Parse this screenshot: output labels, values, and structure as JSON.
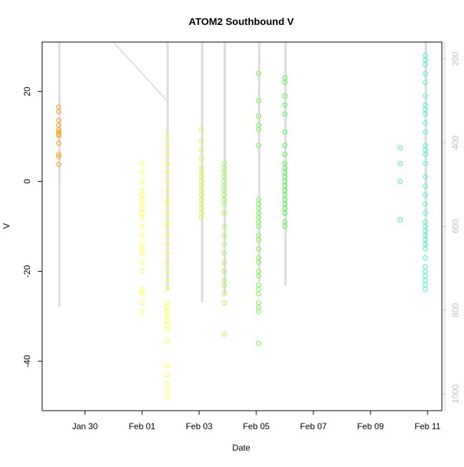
{
  "chart_data": {
    "type": "scatter",
    "title": "ATOM2 Southbound V",
    "xlabel": "Date",
    "ylabel": "V",
    "x_ticks": [
      "Jan 30",
      "Feb 01",
      "Feb 03",
      "Feb 05",
      "Feb 07",
      "Feb 09",
      "Feb 11"
    ],
    "y_ticks": [
      "-40",
      "-20",
      "0",
      "20"
    ],
    "y2_ticks": [
      "200",
      "400",
      "600",
      "800",
      "1000"
    ],
    "x_range": [
      "2015-01-28T12:00",
      "2015-02-11T12:00"
    ],
    "ylim": [
      -51,
      31
    ],
    "y2lim": [
      1040,
      160
    ],
    "grid": false,
    "legend": "none",
    "series": [
      {
        "color": "#ff9900",
        "points": [
          [
            "2015-01-29T02:00",
            16.5
          ],
          [
            "2015-01-29T02:00",
            15.5
          ],
          [
            "2015-01-29T02:00",
            13.5
          ],
          [
            "2015-01-29T02:00",
            12.5
          ],
          [
            "2015-01-29T02:00",
            11.5
          ],
          [
            "2015-01-29T02:00",
            11
          ],
          [
            "2015-01-29T02:00",
            10.5
          ],
          [
            "2015-01-29T02:00",
            10.2
          ],
          [
            "2015-01-29T02:00",
            8.5
          ],
          [
            "2015-01-29T02:00",
            6
          ],
          [
            "2015-01-29T02:00",
            5.5
          ],
          [
            "2015-01-29T02:00",
            3.8
          ]
        ]
      },
      {
        "color": "#ffff33",
        "points": [
          [
            "2015-02-01T00:00",
            4
          ],
          [
            "2015-02-01T00:00",
            2
          ],
          [
            "2015-02-01T00:00",
            0
          ],
          [
            "2015-02-01T00:00",
            -2
          ],
          [
            "2015-02-01T00:00",
            -3
          ],
          [
            "2015-02-01T00:00",
            -4
          ],
          [
            "2015-02-01T00:00",
            -5
          ],
          [
            "2015-02-01T00:00",
            -6
          ],
          [
            "2015-02-01T00:00",
            -7
          ],
          [
            "2015-02-01T00:00",
            -8
          ],
          [
            "2015-02-01T00:00",
            -10
          ],
          [
            "2015-02-01T00:00",
            -12
          ],
          [
            "2015-02-01T00:00",
            -14
          ],
          [
            "2015-02-01T00:00",
            -15
          ],
          [
            "2015-02-01T00:00",
            -16
          ],
          [
            "2015-02-01T00:00",
            -18
          ],
          [
            "2015-02-01T00:00",
            -20
          ],
          [
            "2015-02-01T00:00",
            -24
          ],
          [
            "2015-02-01T00:00",
            -25
          ],
          [
            "2015-02-01T00:00",
            -27
          ],
          [
            "2015-02-01T00:00",
            -29
          ],
          [
            "2015-02-01T21:00",
            10
          ],
          [
            "2015-02-01T21:00",
            8
          ],
          [
            "2015-02-01T21:00",
            6
          ],
          [
            "2015-02-01T21:00",
            4
          ],
          [
            "2015-02-01T21:00",
            2
          ],
          [
            "2015-02-01T21:00",
            0
          ],
          [
            "2015-02-01T21:00",
            -2
          ],
          [
            "2015-02-01T21:00",
            -4
          ],
          [
            "2015-02-01T21:00",
            -5
          ],
          [
            "2015-02-01T21:00",
            -7
          ],
          [
            "2015-02-01T21:00",
            -9
          ],
          [
            "2015-02-01T21:00",
            -10
          ],
          [
            "2015-02-01T21:00",
            -12
          ],
          [
            "2015-02-01T21:00",
            -14
          ],
          [
            "2015-02-01T21:00",
            -16
          ],
          [
            "2015-02-01T21:00",
            -18
          ],
          [
            "2015-02-01T21:00",
            -20
          ],
          [
            "2015-02-01T21:00",
            -22
          ],
          [
            "2015-02-01T21:00",
            -24
          ],
          [
            "2015-02-01T21:00",
            -27
          ],
          [
            "2015-02-01T21:00",
            -28
          ],
          [
            "2015-02-01T21:00",
            -29
          ],
          [
            "2015-02-01T21:00",
            -30
          ],
          [
            "2015-02-01T21:00",
            -31
          ],
          [
            "2015-02-01T21:00",
            -32
          ],
          [
            "2015-02-01T21:00",
            -33
          ],
          [
            "2015-02-01T21:00",
            -35.5
          ],
          [
            "2015-02-01T21:00",
            -41
          ],
          [
            "2015-02-01T21:00",
            -43
          ],
          [
            "2015-02-01T21:00",
            -45
          ],
          [
            "2015-02-01T21:00",
            -46.5
          ],
          [
            "2015-02-01T21:00",
            -48
          ]
        ]
      },
      {
        "color": "#ccff33",
        "points": [
          [
            "2015-02-03T02:00",
            11.5
          ],
          [
            "2015-02-03T02:00",
            9
          ],
          [
            "2015-02-03T02:00",
            7
          ],
          [
            "2015-02-03T02:00",
            5
          ],
          [
            "2015-02-03T02:00",
            3
          ],
          [
            "2015-02-03T02:00",
            2
          ],
          [
            "2015-02-03T02:00",
            1
          ],
          [
            "2015-02-03T02:00",
            0
          ],
          [
            "2015-02-03T02:00",
            -1
          ],
          [
            "2015-02-03T02:00",
            -2
          ],
          [
            "2015-02-03T02:00",
            -3
          ],
          [
            "2015-02-03T02:00",
            -4
          ],
          [
            "2015-02-03T02:00",
            -5
          ],
          [
            "2015-02-03T02:00",
            -6
          ],
          [
            "2015-02-03T02:00",
            -7
          ],
          [
            "2015-02-03T02:00",
            -8
          ]
        ]
      },
      {
        "color": "#99ff33",
        "points": [
          [
            "2015-02-03T21:00",
            4
          ],
          [
            "2015-02-03T21:00",
            3
          ],
          [
            "2015-02-03T21:00",
            2
          ],
          [
            "2015-02-03T21:00",
            1
          ],
          [
            "2015-02-03T21:00",
            0
          ],
          [
            "2015-02-03T21:00",
            -1
          ],
          [
            "2015-02-03T21:00",
            -2
          ],
          [
            "2015-02-03T21:00",
            -3
          ],
          [
            "2015-02-03T21:00",
            -4
          ],
          [
            "2015-02-03T21:00",
            -5
          ],
          [
            "2015-02-03T21:00",
            -7
          ],
          [
            "2015-02-03T21:00",
            -10
          ],
          [
            "2015-02-03T21:00",
            -12
          ],
          [
            "2015-02-03T21:00",
            -14
          ],
          [
            "2015-02-03T21:00",
            -16
          ],
          [
            "2015-02-03T21:00",
            -18
          ],
          [
            "2015-02-03T21:00",
            -20
          ],
          [
            "2015-02-03T21:00",
            -22
          ],
          [
            "2015-02-03T21:00",
            -23
          ],
          [
            "2015-02-03T21:00",
            -25
          ],
          [
            "2015-02-03T21:00",
            -27
          ],
          [
            "2015-02-03T21:00",
            -34
          ]
        ]
      },
      {
        "color": "#66ff33",
        "points": [
          [
            "2015-02-05T02:00",
            24
          ],
          [
            "2015-02-05T02:00",
            18
          ],
          [
            "2015-02-05T02:00",
            14.5
          ],
          [
            "2015-02-05T02:00",
            12.5
          ],
          [
            "2015-02-05T02:00",
            11.5
          ],
          [
            "2015-02-05T02:00",
            8
          ],
          [
            "2015-02-05T02:00",
            -4
          ],
          [
            "2015-02-05T02:00",
            -5
          ],
          [
            "2015-02-05T02:00",
            -6
          ],
          [
            "2015-02-05T02:00",
            -7
          ],
          [
            "2015-02-05T02:00",
            -8
          ],
          [
            "2015-02-05T02:00",
            -9
          ],
          [
            "2015-02-05T02:00",
            -10
          ],
          [
            "2015-02-05T02:00",
            -12
          ],
          [
            "2015-02-05T02:00",
            -13
          ],
          [
            "2015-02-05T02:00",
            -15
          ],
          [
            "2015-02-05T02:00",
            -17
          ],
          [
            "2015-02-05T02:00",
            -18
          ],
          [
            "2015-02-05T02:00",
            -20
          ],
          [
            "2015-02-05T02:00",
            -21
          ],
          [
            "2015-02-05T02:00",
            -23
          ],
          [
            "2015-02-05T02:00",
            -24
          ],
          [
            "2015-02-05T02:00",
            -25
          ],
          [
            "2015-02-05T02:00",
            -27
          ],
          [
            "2015-02-05T02:00",
            -28
          ],
          [
            "2015-02-05T02:00",
            -29
          ],
          [
            "2015-02-05T02:00",
            -36
          ]
        ]
      },
      {
        "color": "#33ff33",
        "points": [
          [
            "2015-02-06T00:00",
            23
          ],
          [
            "2015-02-06T00:00",
            22
          ],
          [
            "2015-02-06T00:00",
            19
          ],
          [
            "2015-02-06T00:00",
            17
          ],
          [
            "2015-02-06T00:00",
            15
          ],
          [
            "2015-02-06T00:00",
            11
          ],
          [
            "2015-02-06T00:00",
            8
          ],
          [
            "2015-02-06T00:00",
            6
          ],
          [
            "2015-02-06T00:00",
            4
          ],
          [
            "2015-02-06T00:00",
            3
          ],
          [
            "2015-02-06T00:00",
            2
          ],
          [
            "2015-02-06T00:00",
            1
          ],
          [
            "2015-02-06T00:00",
            0
          ],
          [
            "2015-02-06T00:00",
            -1
          ],
          [
            "2015-02-06T00:00",
            -2
          ],
          [
            "2015-02-06T00:00",
            -3
          ],
          [
            "2015-02-06T00:00",
            -4
          ],
          [
            "2015-02-06T00:00",
            -5
          ],
          [
            "2015-02-06T00:00",
            -6
          ],
          [
            "2015-02-06T00:00",
            -7
          ],
          [
            "2015-02-06T00:00",
            -9
          ],
          [
            "2015-02-06T00:00",
            -10
          ]
        ]
      },
      {
        "color": "#33ff99",
        "points": [
          [
            "2015-02-10T01:00",
            7.5
          ],
          [
            "2015-02-10T01:00",
            4
          ],
          [
            "2015-02-10T01:00",
            0
          ],
          [
            "2015-02-10T01:00",
            -8.5
          ]
        ]
      },
      {
        "color": "#33ffcc",
        "points": [
          [
            "2015-02-10T22:00",
            28
          ],
          [
            "2015-02-10T22:00",
            27
          ],
          [
            "2015-02-10T22:00",
            26
          ],
          [
            "2015-02-10T22:00",
            24
          ],
          [
            "2015-02-10T22:00",
            22
          ],
          [
            "2015-02-10T22:00",
            19
          ],
          [
            "2015-02-10T22:00",
            17
          ],
          [
            "2015-02-10T22:00",
            16
          ],
          [
            "2015-02-10T22:00",
            15
          ],
          [
            "2015-02-10T22:00",
            13
          ],
          [
            "2015-02-10T22:00",
            11
          ],
          [
            "2015-02-10T22:00",
            8
          ],
          [
            "2015-02-10T22:00",
            7
          ],
          [
            "2015-02-10T22:00",
            6
          ],
          [
            "2015-02-10T22:00",
            4
          ],
          [
            "2015-02-10T22:00",
            1
          ],
          [
            "2015-02-10T22:00",
            -1
          ],
          [
            "2015-02-10T22:00",
            -3
          ],
          [
            "2015-02-10T22:00",
            -5
          ],
          [
            "2015-02-10T22:00",
            -7
          ],
          [
            "2015-02-10T22:00",
            -9
          ],
          [
            "2015-02-10T22:00",
            -10
          ],
          [
            "2015-02-10T22:00",
            -11
          ],
          [
            "2015-02-10T22:00",
            -12
          ],
          [
            "2015-02-10T22:00",
            -13
          ],
          [
            "2015-02-10T22:00",
            -14
          ],
          [
            "2015-02-10T22:00",
            -15
          ],
          [
            "2015-02-10T22:00",
            -17
          ],
          [
            "2015-02-10T22:00",
            -19
          ],
          [
            "2015-02-10T22:00",
            -20
          ],
          [
            "2015-02-10T22:00",
            -21
          ],
          [
            "2015-02-10T22:00",
            -22
          ],
          [
            "2015-02-10T22:00",
            -23
          ],
          [
            "2015-02-10T22:00",
            -24
          ]
        ]
      }
    ],
    "track_line": {
      "color": "#c8c8c8",
      "axis": "right",
      "points": [
        [
          "2015-01-29T02:00",
          160
        ],
        [
          "2015-01-29T02:00",
          790
        ],
        [
          "2015-01-29T03:00",
          790
        ],
        [
          "2015-01-29T03:00",
          160
        ],
        [
          "2015-01-31T00:00",
          160
        ],
        [
          "2015-02-01T21:00",
          300
        ],
        [
          "2015-02-01T21:00",
          160
        ],
        [
          "2015-02-01T21:00",
          750
        ],
        [
          "2015-02-01T22:00",
          750
        ],
        [
          "2015-02-01T22:00",
          160
        ],
        [
          "2015-02-03T02:00",
          160
        ],
        [
          "2015-02-03T02:00",
          780
        ],
        [
          "2015-02-03T03:00",
          780
        ],
        [
          "2015-02-03T03:00",
          160
        ],
        [
          "2015-02-03T21:00",
          160
        ],
        [
          "2015-02-03T21:00",
          760
        ],
        [
          "2015-02-03T22:00",
          760
        ],
        [
          "2015-02-03T22:00",
          160
        ],
        [
          "2015-02-05T02:00",
          160
        ],
        [
          "2015-02-05T02:00",
          730
        ],
        [
          "2015-02-05T03:00",
          730
        ],
        [
          "2015-02-05T03:00",
          160
        ],
        [
          "2015-02-06T00:00",
          160
        ],
        [
          "2015-02-06T00:00",
          740
        ],
        [
          "2015-02-06T01:00",
          740
        ],
        [
          "2015-02-06T01:00",
          160
        ],
        [
          "2015-02-10T22:00",
          160
        ],
        [
          "2015-02-10T22:00",
          650
        ],
        [
          "2015-02-10T23:00",
          650
        ],
        [
          "2015-02-10T23:00",
          160
        ]
      ]
    }
  }
}
